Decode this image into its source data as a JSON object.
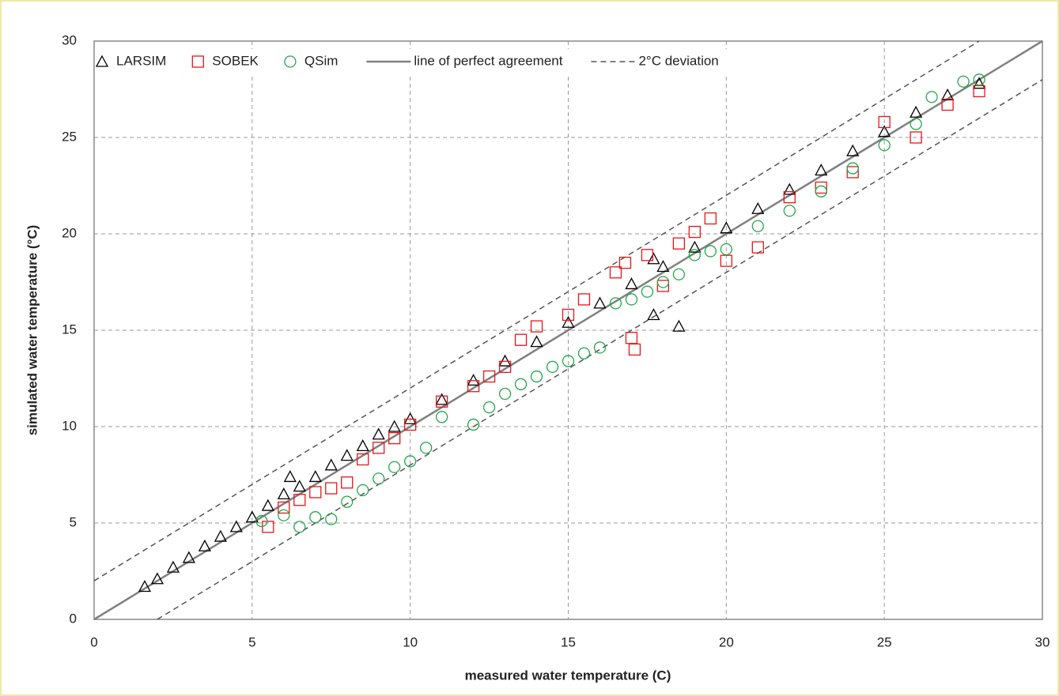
{
  "chart_data": {
    "type": "scatter",
    "xlabel": "measured water temperature (C)",
    "ylabel": "simulated water temperature  (°C)",
    "xlim": [
      0,
      30
    ],
    "ylim": [
      0,
      30
    ],
    "xticks": [
      0,
      5,
      10,
      15,
      20,
      25,
      30
    ],
    "yticks": [
      0,
      5,
      10,
      15,
      20,
      25,
      30
    ],
    "grid": true,
    "legend": "top",
    "series": [
      {
        "name": "LARSIM",
        "color": "#000000",
        "marker": "triangle",
        "x": [
          1.6,
          2.0,
          2.5,
          3.0,
          3.5,
          4.0,
          4.5,
          5.0,
          5.5,
          6.0,
          6.2,
          6.5,
          7.0,
          7.5,
          8.0,
          8.5,
          9.0,
          9.5,
          10,
          11,
          12,
          13,
          14,
          15,
          16,
          17,
          17.7,
          17.7,
          18,
          18.5,
          19,
          20,
          21,
          22,
          23,
          24,
          25,
          26,
          27,
          28
        ],
        "y": [
          1.7,
          2.1,
          2.7,
          3.2,
          3.8,
          4.3,
          4.8,
          5.3,
          5.9,
          6.5,
          7.4,
          6.9,
          7.4,
          8.0,
          8.5,
          9.0,
          9.6,
          10.0,
          10.4,
          11.4,
          12.4,
          13.4,
          14.4,
          15.4,
          16.4,
          17.4,
          18.7,
          15.8,
          18.3,
          15.2,
          19.3,
          20.3,
          21.3,
          22.3,
          23.3,
          24.3,
          25.3,
          26.3,
          27.2,
          27.8
        ]
      },
      {
        "name": "SOBEK",
        "color": "#e8161a",
        "marker": "square",
        "x": [
          5.5,
          6,
          6.5,
          7,
          7.5,
          8,
          8.5,
          9,
          9.5,
          10,
          11,
          12,
          12.5,
          13,
          13.5,
          14,
          15,
          15.5,
          16.5,
          16.8,
          17,
          17.1,
          17.5,
          18,
          18.5,
          19,
          19.5,
          20,
          21,
          22,
          23,
          24,
          25,
          26,
          27,
          28
        ],
        "y": [
          4.8,
          5.8,
          6.2,
          6.6,
          6.8,
          7.1,
          8.3,
          8.9,
          9.4,
          10.1,
          11.3,
          12.1,
          12.6,
          13.1,
          14.5,
          15.2,
          15.8,
          16.6,
          18.0,
          18.5,
          14.6,
          14.0,
          18.9,
          17.3,
          19.5,
          20.1,
          20.8,
          18.6,
          19.3,
          21.9,
          22.4,
          23.2,
          25.8,
          25.0,
          26.7,
          27.4
        ]
      },
      {
        "name": "QSim",
        "color": "#22a84a",
        "marker": "circle",
        "x": [
          5.3,
          6,
          6.5,
          7,
          7.5,
          8,
          8.5,
          9,
          9.5,
          10,
          10.5,
          11,
          12,
          12.5,
          13,
          13.5,
          14,
          14.5,
          15,
          15.5,
          16,
          16.5,
          17,
          17.5,
          18,
          18.5,
          19,
          19.5,
          20,
          21,
          22,
          23,
          24,
          25,
          26,
          26.5,
          27.5,
          28
        ],
        "y": [
          5.1,
          5.4,
          4.8,
          5.3,
          5.2,
          6.1,
          6.7,
          7.3,
          7.9,
          8.2,
          8.9,
          10.5,
          10.1,
          11.0,
          11.7,
          12.2,
          12.6,
          13.1,
          13.4,
          13.8,
          14.1,
          16.4,
          16.6,
          17.0,
          17.5,
          17.9,
          18.9,
          19.1,
          19.2,
          20.4,
          21.2,
          22.2,
          23.4,
          24.6,
          25.7,
          27.1,
          27.9,
          28.0
        ]
      },
      {
        "name": "line of perfect agreement",
        "color": "#808080",
        "line": "solid",
        "x": [
          0,
          30
        ],
        "y": [
          0,
          30
        ]
      },
      {
        "name": "2°C deviation",
        "color": "#555555",
        "line": "dashed",
        "x": [
          0,
          28,
          null,
          2,
          30
        ],
        "y": [
          2,
          30,
          null,
          0,
          28
        ]
      }
    ]
  }
}
